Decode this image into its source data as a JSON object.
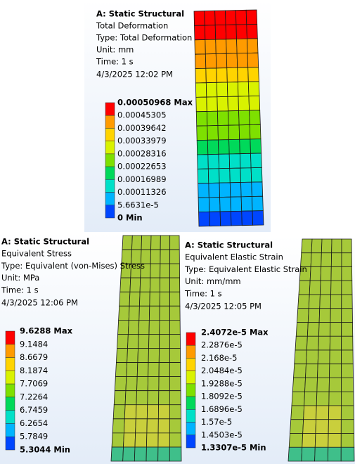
{
  "panels": [
    {
      "title": "A: Static Structural",
      "lines": [
        "Total Deformation",
        "Type: Total Deformation",
        "Unit: mm",
        "Time: 1 s",
        "4/3/2025 12:02 PM"
      ],
      "legend": [
        "0.00050968 Max",
        "0.00045305",
        "0.00039642",
        "0.00033979",
        "0.00028316",
        "0.00022653",
        "0.00016989",
        "0.00011326",
        "5.6631e-5",
        "0 Min"
      ]
    },
    {
      "title": "A: Static Structural",
      "lines": [
        "Equivalent Stress",
        "Type: Equivalent (von-Mises) Stress",
        "Unit: MPa",
        "Time: 1 s",
        "4/3/2025 12:06 PM"
      ],
      "legend": [
        "9.6288 Max",
        "9.1484",
        "8.6679",
        "8.1874",
        "7.7069",
        "7.2264",
        "6.7459",
        "6.2654",
        "5.7849",
        "5.3044 Min"
      ]
    },
    {
      "title": "A: Static Structural",
      "lines": [
        "Equivalent Elastic Strain",
        "Type: Equivalent Elastic Strain",
        "Unit: mm/mm",
        "Time: 1 s",
        "4/3/2025 12:05 PM"
      ],
      "legend": [
        "2.4072e-5 Max",
        "2.2876e-5",
        "2.168e-5",
        "2.0484e-5",
        "1.9288e-5",
        "1.8092e-5",
        "1.6896e-5",
        "1.57e-5",
        "1.4503e-5",
        "1.3307e-5 Min"
      ]
    }
  ]
}
